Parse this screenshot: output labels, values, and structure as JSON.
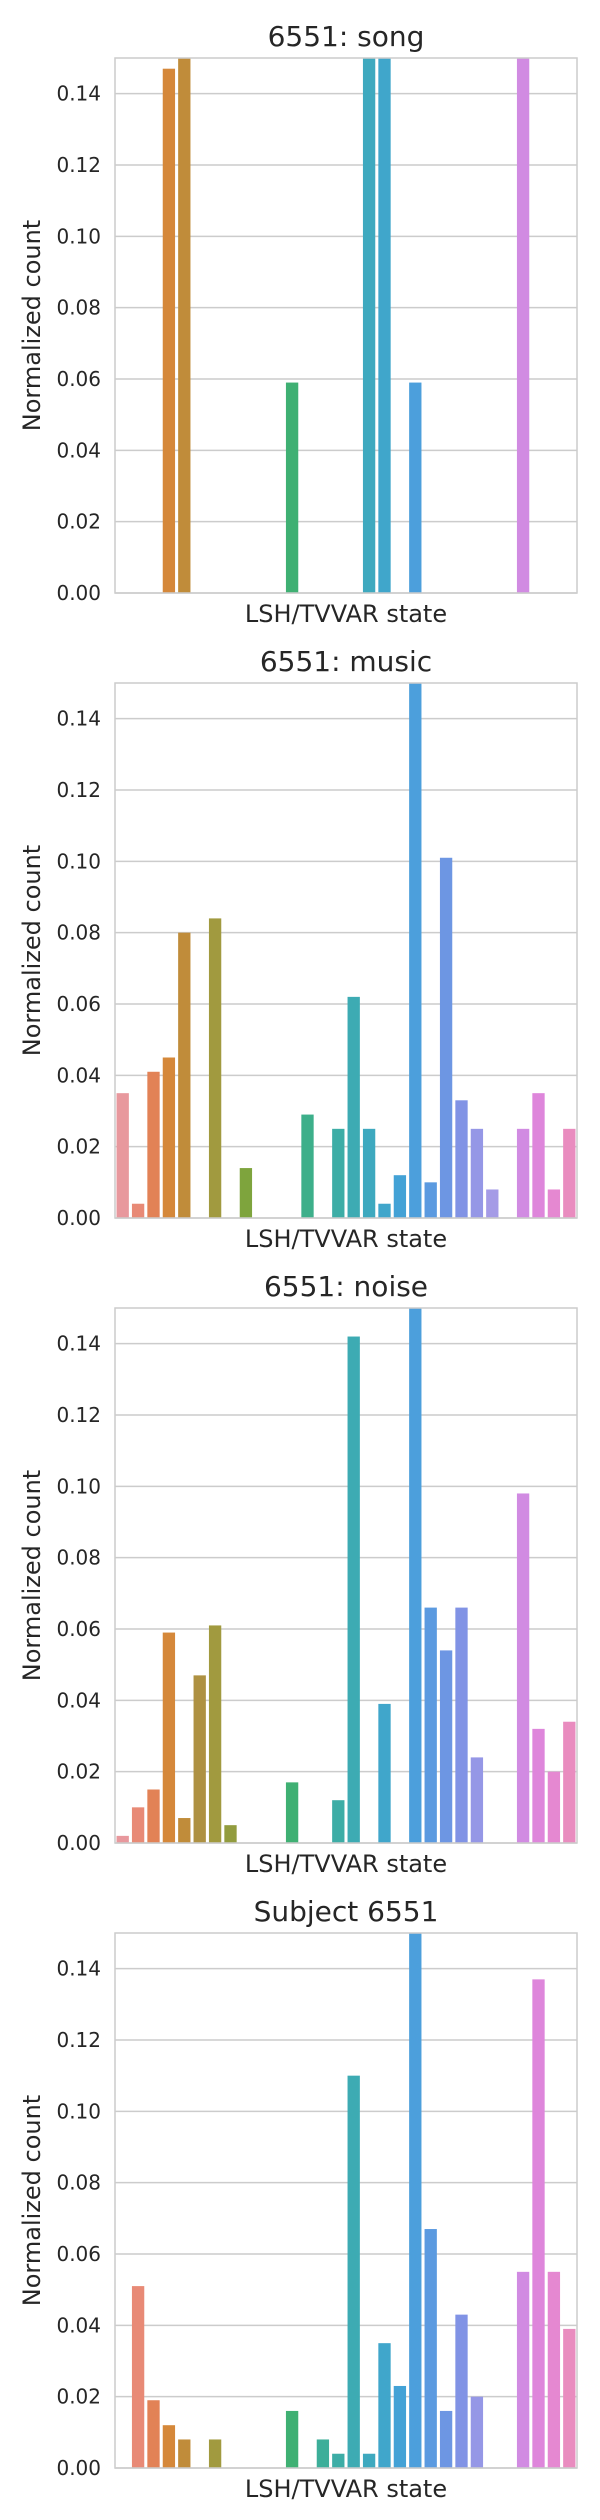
{
  "chart_data": [
    {
      "type": "bar",
      "title": "6551: song",
      "xlabel": "LSH/TVVAR state",
      "ylabel": "Normalized count",
      "ylim": [
        0,
        0.15
      ],
      "yticks": [
        "0.00",
        "0.02",
        "0.04",
        "0.06",
        "0.08",
        "0.10",
        "0.12",
        "0.14"
      ],
      "grid": true,
      "values": [
        0,
        0,
        0,
        0.147,
        0.15,
        0,
        0,
        0,
        0,
        0,
        0,
        0.059,
        0,
        0,
        0,
        0,
        0.15,
        0.15,
        0,
        0.059,
        0,
        0,
        0,
        0,
        0,
        0,
        0.15,
        0,
        0,
        0
      ]
    },
    {
      "type": "bar",
      "title": "6551: music",
      "xlabel": "LSH/TVVAR state",
      "ylabel": "Normalized count",
      "ylim": [
        0,
        0.15
      ],
      "yticks": [
        "0.00",
        "0.02",
        "0.04",
        "0.06",
        "0.08",
        "0.10",
        "0.12",
        "0.14"
      ],
      "grid": true,
      "values": [
        0.035,
        0.004,
        0.041,
        0.045,
        0.08,
        0,
        0.084,
        0,
        0.014,
        0,
        0,
        0,
        0.029,
        0,
        0.025,
        0.062,
        0.025,
        0.004,
        0.012,
        0.15,
        0.01,
        0.101,
        0.033,
        0.025,
        0.008,
        0,
        0.025,
        0.035,
        0.008,
        0.025
      ]
    },
    {
      "type": "bar",
      "title": "6551: noise",
      "xlabel": "LSH/TVVAR state",
      "ylabel": "Normalized count",
      "ylim": [
        0,
        0.15
      ],
      "yticks": [
        "0.00",
        "0.02",
        "0.04",
        "0.06",
        "0.08",
        "0.10",
        "0.12",
        "0.14"
      ],
      "grid": true,
      "values": [
        0.002,
        0.01,
        0.015,
        0.059,
        0.007,
        0.047,
        0.061,
        0.005,
        0,
        0,
        0,
        0.017,
        0,
        0,
        0.012,
        0.142,
        0,
        0.039,
        0,
        0.15,
        0.066,
        0.054,
        0.066,
        0.024,
        0,
        0,
        0.098,
        0.032,
        0.02,
        0.034
      ]
    },
    {
      "type": "bar",
      "title": "Subject 6551",
      "xlabel": "LSH/TVVAR state",
      "ylabel": "Normalized count",
      "ylim": [
        0,
        0.15
      ],
      "yticks": [
        "0.00",
        "0.02",
        "0.04",
        "0.06",
        "0.08",
        "0.10",
        "0.12",
        "0.14"
      ],
      "grid": true,
      "values": [
        0,
        0.051,
        0.019,
        0.012,
        0.008,
        0,
        0.008,
        0,
        0,
        0,
        0,
        0.016,
        0,
        0.008,
        0.004,
        0.11,
        0.004,
        0.035,
        0.023,
        0.15,
        0.067,
        0.016,
        0.043,
        0.02,
        0,
        0,
        0.055,
        0.137,
        0.055,
        0.039
      ]
    }
  ],
  "palette": [
    "#e8989d",
    "#e88a76",
    "#e28256",
    "#d5883a",
    "#c08c3a",
    "#ae9142",
    "#a19a3f",
    "#929c3f",
    "#7ea43d",
    "#5fad3c",
    "#45b54b",
    "#3fb073",
    "#3daf8a",
    "#3cae99",
    "#3dada6",
    "#3dabb3",
    "#3ea9bf",
    "#40a6cb",
    "#43a2d6",
    "#4c9fdc",
    "#5b9ae0",
    "#6d96e3",
    "#8193e5",
    "#9597e6",
    "#a59be6",
    "#bd92e5",
    "#d18be2",
    "#de86db",
    "#e588d1",
    "#e98cbf"
  ]
}
